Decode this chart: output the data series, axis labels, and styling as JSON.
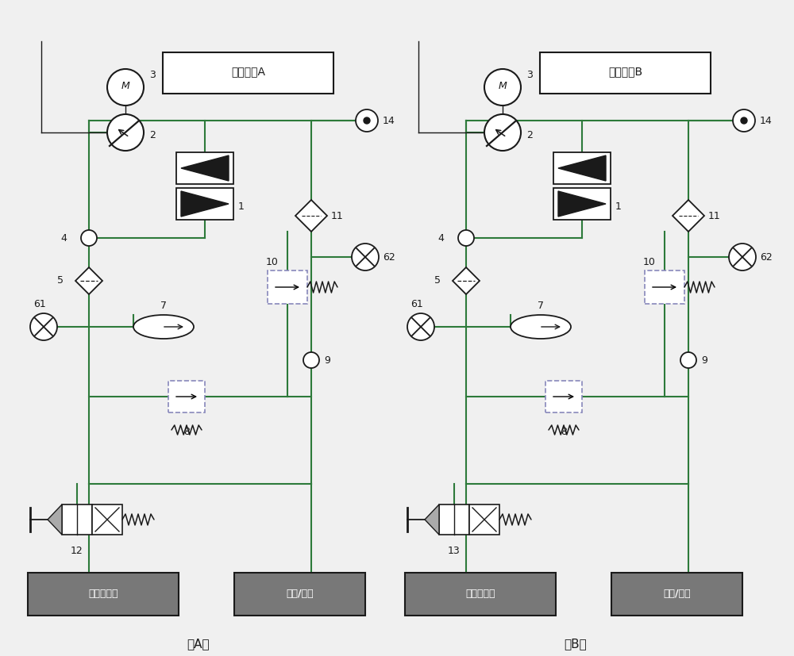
{
  "title_A": "主份回路A",
  "title_B": "备份回路B",
  "label_A": "（A）",
  "label_B": "（B）",
  "box_left": "收放作动筒",
  "box_right": "转向/刹车",
  "bg_color": "#f0f0f0",
  "line_color": "#2d7a3a",
  "black": "#1a1a1a",
  "gray_box": "#787878",
  "white": "#ffffff",
  "dash_color": "#8888bb",
  "lw": 1.5,
  "circuit_A_ox": 0.3,
  "circuit_A_oy": 0.45,
  "circuit_B_ox": 5.05,
  "circuit_B_oy": 0.45
}
